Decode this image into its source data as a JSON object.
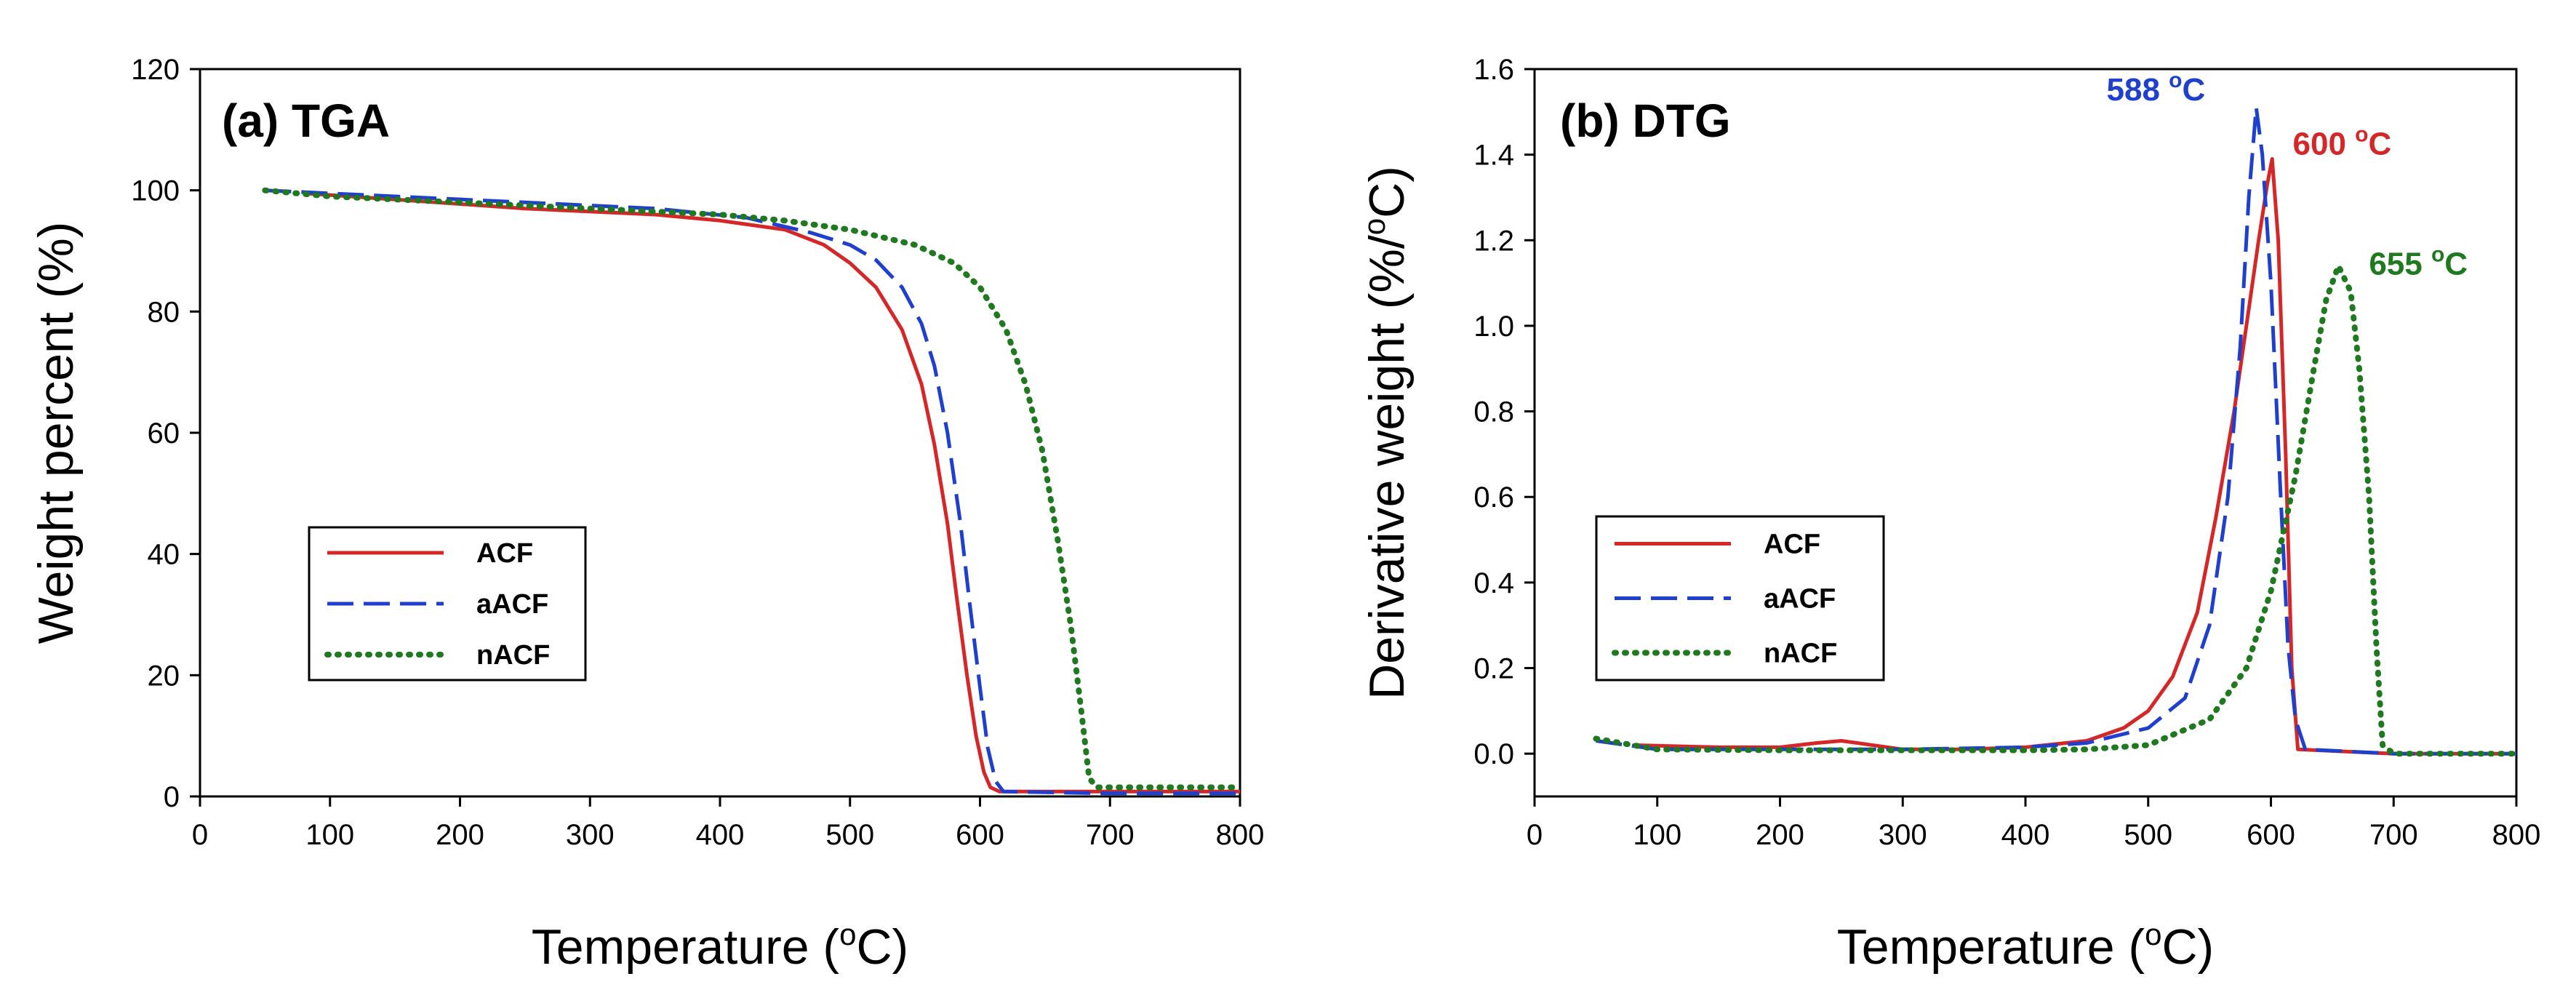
{
  "chart_data": [
    {
      "type": "line",
      "title": "(a) TGA",
      "xlabel": "Temperature",
      "xunit": "(°C)",
      "ylabel": "Weight percent (%)",
      "xlim": [
        0,
        800
      ],
      "ylim": [
        0,
        120
      ],
      "x_ticks": [
        0,
        100,
        200,
        300,
        400,
        500,
        600,
        700,
        800
      ],
      "y_ticks": [
        0,
        20,
        40,
        60,
        80,
        100,
        120
      ],
      "grid": false,
      "legend_position": "bottom-left",
      "series": [
        {
          "name": "ACF",
          "color": "#d62728",
          "style": "solid",
          "points": [
            [
              80,
              99.5
            ],
            [
              150,
              98.5
            ],
            [
              250,
              97
            ],
            [
              350,
              96
            ],
            [
              400,
              95
            ],
            [
              450,
              93.5
            ],
            [
              480,
              91
            ],
            [
              500,
              88
            ],
            [
              520,
              84
            ],
            [
              540,
              77
            ],
            [
              555,
              68
            ],
            [
              565,
              58
            ],
            [
              575,
              45
            ],
            [
              582,
              33
            ],
            [
              590,
              20
            ],
            [
              597,
              10
            ],
            [
              603,
              4
            ],
            [
              608,
              1.5
            ],
            [
              615,
              0.8
            ],
            [
              700,
              0.8
            ],
            [
              800,
              0.8
            ]
          ]
        },
        {
          "name": "aACF",
          "color": "#1f3fcf",
          "style": "dashed",
          "points": [
            [
              50,
              100
            ],
            [
              150,
              99
            ],
            [
              250,
              98
            ],
            [
              350,
              97
            ],
            [
              420,
              95.5
            ],
            [
              470,
              93
            ],
            [
              500,
              91
            ],
            [
              520,
              88.5
            ],
            [
              540,
              84
            ],
            [
              555,
              78
            ],
            [
              565,
              71
            ],
            [
              575,
              60
            ],
            [
              585,
              45
            ],
            [
              592,
              32
            ],
            [
              600,
              18
            ],
            [
              606,
              8
            ],
            [
              612,
              2.5
            ],
            [
              618,
              0.8
            ],
            [
              700,
              0.5
            ],
            [
              800,
              0.5
            ]
          ]
        },
        {
          "name": "nACF",
          "color": "#1f7a1f",
          "style": "dotted",
          "points": [
            [
              50,
              100
            ],
            [
              100,
              99
            ],
            [
              200,
              98
            ],
            [
              300,
              97
            ],
            [
              400,
              96
            ],
            [
              450,
              95
            ],
            [
              500,
              93.5
            ],
            [
              550,
              91
            ],
            [
              580,
              88
            ],
            [
              600,
              84
            ],
            [
              620,
              77
            ],
            [
              635,
              68
            ],
            [
              648,
              57
            ],
            [
              660,
              42
            ],
            [
              670,
              28
            ],
            [
              678,
              14
            ],
            [
              684,
              3
            ],
            [
              690,
              1.5
            ],
            [
              800,
              1.5
            ]
          ]
        }
      ]
    },
    {
      "type": "line",
      "title": "(b) DTG",
      "xlabel": "Temperature",
      "xunit": "(°C)",
      "ylabel": "Derivative weight (%/°C)",
      "xlim": [
        0,
        800
      ],
      "ylim": [
        -0.1,
        1.6
      ],
      "x_ticks": [
        0,
        100,
        200,
        300,
        400,
        500,
        600,
        700,
        800
      ],
      "y_ticks": [
        0.0,
        0.2,
        0.4,
        0.6,
        0.8,
        1.0,
        1.2,
        1.4,
        1.6
      ],
      "y_tick_labels": [
        "0.0",
        "0.2",
        "0.4",
        "0.6",
        "0.8",
        "1.0",
        "1.2",
        "1.4",
        "1.6"
      ],
      "grid": false,
      "legend_position": "bottom-left",
      "annotations": [
        {
          "text": "588 °C",
          "series": "aACF",
          "x": 588,
          "y": 1.51
        },
        {
          "text": "600 °C",
          "series": "ACF",
          "x": 600,
          "y": 1.39
        },
        {
          "text": "655 °C",
          "series": "nACF",
          "x": 655,
          "y": 1.14
        }
      ],
      "series": [
        {
          "name": "ACF",
          "color": "#d62728",
          "style": "solid",
          "points": [
            [
              80,
              0.02
            ],
            [
              150,
              0.015
            ],
            [
              200,
              0.015
            ],
            [
              230,
              0.025
            ],
            [
              250,
              0.03
            ],
            [
              270,
              0.022
            ],
            [
              300,
              0.01
            ],
            [
              350,
              0.01
            ],
            [
              400,
              0.015
            ],
            [
              450,
              0.03
            ],
            [
              480,
              0.06
            ],
            [
              500,
              0.1
            ],
            [
              520,
              0.18
            ],
            [
              540,
              0.33
            ],
            [
              555,
              0.55
            ],
            [
              570,
              0.8
            ],
            [
              580,
              1.0
            ],
            [
              590,
              1.2
            ],
            [
              597,
              1.33
            ],
            [
              601,
              1.39
            ],
            [
              606,
              1.2
            ],
            [
              612,
              0.7
            ],
            [
              617,
              0.2
            ],
            [
              622,
              0.01
            ],
            [
              700,
              0.0
            ],
            [
              800,
              0.0
            ]
          ]
        },
        {
          "name": "aACF",
          "color": "#1f3fcf",
          "style": "dashed",
          "points": [
            [
              50,
              0.03
            ],
            [
              100,
              0.01
            ],
            [
              200,
              0.01
            ],
            [
              300,
              0.01
            ],
            [
              400,
              0.015
            ],
            [
              450,
              0.025
            ],
            [
              500,
              0.06
            ],
            [
              530,
              0.13
            ],
            [
              550,
              0.3
            ],
            [
              565,
              0.6
            ],
            [
              575,
              0.95
            ],
            [
              582,
              1.3
            ],
            [
              588,
              1.51
            ],
            [
              593,
              1.4
            ],
            [
              600,
              1.1
            ],
            [
              608,
              0.6
            ],
            [
              614,
              0.25
            ],
            [
              620,
              0.08
            ],
            [
              628,
              0.01
            ],
            [
              700,
              0.0
            ],
            [
              800,
              0.0
            ]
          ]
        },
        {
          "name": "nACF",
          "color": "#1f7a1f",
          "style": "dotted",
          "points": [
            [
              50,
              0.035
            ],
            [
              100,
              0.01
            ],
            [
              200,
              0.008
            ],
            [
              300,
              0.008
            ],
            [
              400,
              0.008
            ],
            [
              450,
              0.01
            ],
            [
              500,
              0.02
            ],
            [
              550,
              0.08
            ],
            [
              580,
              0.2
            ],
            [
              600,
              0.38
            ],
            [
              620,
              0.65
            ],
            [
              635,
              0.9
            ],
            [
              645,
              1.06
            ],
            [
              655,
              1.14
            ],
            [
              665,
              1.08
            ],
            [
              672,
              0.9
            ],
            [
              680,
              0.6
            ],
            [
              686,
              0.25
            ],
            [
              691,
              0.02
            ],
            [
              700,
              0.0
            ],
            [
              800,
              0.0
            ]
          ]
        }
      ]
    }
  ]
}
